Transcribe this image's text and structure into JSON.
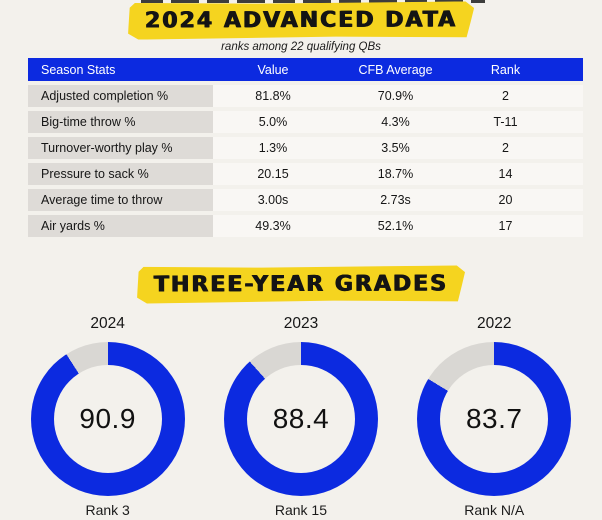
{
  "colors": {
    "accent_blue": "#0c2ae0",
    "highlight_yellow": "#f5d41f",
    "label_cell_gray": "#dedbd7",
    "row_bg": "#f9f7f4",
    "donut_track_gray": "#d9d7d3",
    "page_bg": "#f3f1ec"
  },
  "advanced_data": {
    "title": "2024 ADVANCED DATA",
    "subtitle": "ranks among 22 qualifying QBs",
    "table": {
      "columns": [
        "Season Stats",
        "Value",
        "CFB Average",
        "Rank"
      ],
      "rows": [
        {
          "stat": "Adjusted completion %",
          "value": "81.8%",
          "cfb_average": "70.9%",
          "rank": "2"
        },
        {
          "stat": "Big-time throw %",
          "value": "5.0%",
          "cfb_average": "4.3%",
          "rank": "T-11"
        },
        {
          "stat": "Turnover-worthy play %",
          "value": "1.3%",
          "cfb_average": "3.5%",
          "rank": "2"
        },
        {
          "stat": "Pressure to sack %",
          "value": "20.15",
          "cfb_average": "18.7%",
          "rank": "14"
        },
        {
          "stat": "Average time to throw",
          "value": "3.00s",
          "cfb_average": "2.73s",
          "rank": "20"
        },
        {
          "stat": "Air yards %",
          "value": "49.3%",
          "cfb_average": "52.1%",
          "rank": "17"
        }
      ]
    }
  },
  "three_year_grades": {
    "title": "THREE-YEAR GRADES",
    "donuts": [
      {
        "year": "2024",
        "grade": 90.9,
        "rank_label": "Rank 3"
      },
      {
        "year": "2023",
        "grade": 88.4,
        "rank_label": "Rank 15"
      },
      {
        "year": "2022",
        "grade": 83.7,
        "rank_label": "Rank N/A"
      }
    ]
  },
  "chart_data": [
    {
      "type": "table",
      "title": "2024 ADVANCED DATA",
      "subtitle": "ranks among 22 qualifying QBs",
      "columns": [
        "Season Stats",
        "Value",
        "CFB Average",
        "Rank"
      ],
      "rows": [
        [
          "Adjusted completion %",
          "81.8%",
          "70.9%",
          "2"
        ],
        [
          "Big-time throw %",
          "5.0%",
          "4.3%",
          "T-11"
        ],
        [
          "Turnover-worthy play %",
          "1.3%",
          "3.5%",
          "2"
        ],
        [
          "Pressure to sack %",
          "20.15",
          "18.7%",
          "14"
        ],
        [
          "Average time to throw",
          "3.00s",
          "2.73s",
          "20"
        ],
        [
          "Air yards %",
          "49.3%",
          "52.1%",
          "17"
        ]
      ]
    },
    {
      "type": "pie",
      "variant": "donut-gauges",
      "title": "THREE-YEAR GRADES",
      "categories": [
        "2024",
        "2023",
        "2022"
      ],
      "values": [
        90.9,
        88.4,
        83.7
      ],
      "value_range": [
        0,
        100
      ],
      "annotations": [
        "Rank 3",
        "Rank 15",
        "Rank N/A"
      ],
      "fill_color": "#0c2ae0",
      "remainder_color": "#d9d7d3",
      "start_angle_deg": 0,
      "direction": "clockwise"
    }
  ]
}
